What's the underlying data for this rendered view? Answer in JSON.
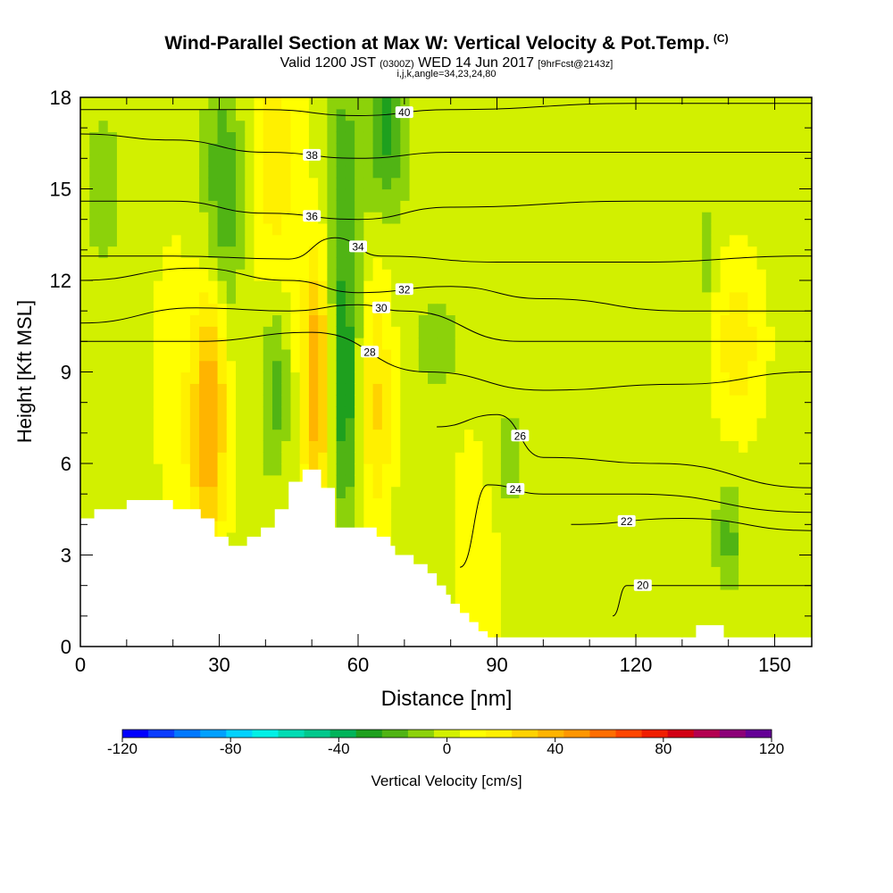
{
  "header": {
    "title": "Wind-Parallel Section at Max W: Vertical Velocity & Pot.Temp.",
    "copyright": "(C)",
    "valid_prefix": "Valid 1200 JST",
    "valid_utc": "(0300Z)",
    "valid_date": "WED 14 Jun 2017",
    "forecast": "[9hrFcst@2143z]",
    "params": "i,j,k,angle=34,23,24,80"
  },
  "chart_data": {
    "type": "heatmap",
    "xlabel": "Distance [nm]",
    "ylabel": "Height [Kft MSL]",
    "xlim": [
      0,
      158
    ],
    "ylim": [
      0,
      18
    ],
    "x_ticks": [
      0,
      30,
      60,
      90,
      120,
      150
    ],
    "y_ticks": [
      0,
      3,
      6,
      9,
      12,
      15,
      18
    ],
    "colorbar": {
      "label": "Vertical Velocity [cm/s]",
      "range": [
        -120,
        120
      ],
      "step": 10,
      "tick_values": [
        -120,
        -80,
        -40,
        0,
        40,
        80,
        120
      ],
      "colors": [
        "#0000ff",
        "#0a3cff",
        "#0078ff",
        "#00a0ff",
        "#00d2ff",
        "#00f0e6",
        "#00dcb4",
        "#00c88c",
        "#00b45a",
        "#1ea01e",
        "#50b414",
        "#8cd20a",
        "#d2f000",
        "#ffff00",
        "#fff000",
        "#ffd200",
        "#ffb400",
        "#ff9600",
        "#ff6e00",
        "#ff4600",
        "#f01e00",
        "#d20014",
        "#b40050",
        "#8c0078",
        "#640096"
      ]
    },
    "terrain_kft": [
      [
        0,
        4.2
      ],
      [
        3,
        4.2
      ],
      [
        3,
        4.5
      ],
      [
        10,
        4.5
      ],
      [
        10,
        4.8
      ],
      [
        20,
        4.8
      ],
      [
        20,
        4.5
      ],
      [
        26,
        4.5
      ],
      [
        26,
        4.2
      ],
      [
        29,
        4.2
      ],
      [
        29,
        3.6
      ],
      [
        32,
        3.6
      ],
      [
        32,
        3.3
      ],
      [
        36,
        3.3
      ],
      [
        36,
        3.6
      ],
      [
        39,
        3.6
      ],
      [
        39,
        3.9
      ],
      [
        42,
        3.9
      ],
      [
        42,
        4.5
      ],
      [
        45,
        4.5
      ],
      [
        45,
        5.4
      ],
      [
        48,
        5.4
      ],
      [
        48,
        5.8
      ],
      [
        52,
        5.8
      ],
      [
        52,
        5.2
      ],
      [
        55,
        5.2
      ],
      [
        55,
        3.9
      ],
      [
        64,
        3.9
      ],
      [
        64,
        3.6
      ],
      [
        67,
        3.6
      ],
      [
        67,
        3.3
      ],
      [
        68,
        3.3
      ],
      [
        68,
        3.0
      ],
      [
        72,
        3.0
      ],
      [
        72,
        2.7
      ],
      [
        75,
        2.7
      ],
      [
        75,
        2.4
      ],
      [
        77,
        2.4
      ],
      [
        77,
        2.0
      ],
      [
        79,
        2.0
      ],
      [
        79,
        1.7
      ],
      [
        80,
        1.7
      ],
      [
        80,
        1.4
      ],
      [
        82,
        1.4
      ],
      [
        82,
        1.1
      ],
      [
        84,
        1.1
      ],
      [
        84,
        0.8
      ],
      [
        86,
        0.8
      ],
      [
        86,
        0.5
      ],
      [
        88,
        0.5
      ],
      [
        88,
        0.3
      ],
      [
        133,
        0.3
      ],
      [
        133,
        0.7
      ],
      [
        139,
        0.7
      ],
      [
        139,
        0.3
      ],
      [
        158,
        0.3
      ]
    ],
    "updrafts": [
      {
        "x": 28,
        "z": 8.5,
        "w": 40,
        "sx": 2.6,
        "sz": 2.5
      },
      {
        "x": 27,
        "z": 5,
        "w": 20,
        "sx": 3,
        "sz": 2
      },
      {
        "x": 51,
        "z": 8.8,
        "w": 45,
        "sx": 2.2,
        "sz": 2.8
      },
      {
        "x": 64,
        "z": 8,
        "w": 25,
        "sx": 2.5,
        "sz": 3
      },
      {
        "x": 42,
        "z": 16,
        "w": 20,
        "sx": 4,
        "sz": 3
      },
      {
        "x": 142,
        "z": 10,
        "w": 20,
        "sx": 4,
        "sz": 2
      },
      {
        "x": 20,
        "z": 9,
        "w": 12,
        "sx": 3,
        "sz": 3
      },
      {
        "x": 86,
        "z": 3,
        "w": 12,
        "sx": 4,
        "sz": 3
      }
    ],
    "downdrafts": [
      {
        "x": 31,
        "z": 15,
        "w": -25,
        "sx": 3,
        "sz": 3
      },
      {
        "x": 42,
        "z": 8.5,
        "w": -20,
        "sx": 2,
        "sz": 2
      },
      {
        "x": 57,
        "z": 13,
        "w": -25,
        "sx": 2.5,
        "sz": 5
      },
      {
        "x": 66,
        "z": 17,
        "w": -30,
        "sx": 3,
        "sz": 2
      },
      {
        "x": 57,
        "z": 7.5,
        "w": -20,
        "sx": 2,
        "sz": 2.5
      },
      {
        "x": 77,
        "z": 10,
        "w": -15,
        "sx": 3,
        "sz": 1
      },
      {
        "x": 92,
        "z": 6,
        "w": -12,
        "sx": 3,
        "sz": 1.5
      },
      {
        "x": 140,
        "z": 3.5,
        "w": -20,
        "sx": 2,
        "sz": 1.2
      },
      {
        "x": 5,
        "z": 15,
        "w": -12,
        "sx": 3,
        "sz": 2
      },
      {
        "x": 135,
        "z": 12.5,
        "w": -12,
        "sx": 1.5,
        "sz": 1.5
      }
    ],
    "contours": [
      {
        "value": 40,
        "label": "40",
        "points": [
          [
            0,
            17.6
          ],
          [
            40,
            17.6
          ],
          [
            60,
            17.4
          ],
          [
            80,
            17.6
          ],
          [
            120,
            17.8
          ],
          [
            158,
            17.8
          ]
        ]
      },
      {
        "value": 38,
        "label": "38",
        "points": [
          [
            0,
            16.8
          ],
          [
            20,
            16.6
          ],
          [
            40,
            16.2
          ],
          [
            60,
            16.0
          ],
          [
            80,
            16.2
          ],
          [
            120,
            16.2
          ],
          [
            158,
            16.2
          ]
        ]
      },
      {
        "value": 36,
        "label": "36",
        "points": [
          [
            0,
            14.6
          ],
          [
            20,
            14.6
          ],
          [
            40,
            14.2
          ],
          [
            60,
            14.0
          ],
          [
            80,
            14.4
          ],
          [
            120,
            14.6
          ],
          [
            158,
            14.6
          ]
        ]
      },
      {
        "value": 34,
        "label": "34",
        "points": [
          [
            0,
            12.8
          ],
          [
            20,
            12.8
          ],
          [
            45,
            12.7
          ],
          [
            55,
            13.4
          ],
          [
            65,
            12.8
          ],
          [
            90,
            12.6
          ],
          [
            120,
            12.6
          ],
          [
            158,
            12.8
          ]
        ]
      },
      {
        "value": 32,
        "label": "32",
        "points": [
          [
            0,
            12.0
          ],
          [
            25,
            12.4
          ],
          [
            45,
            12.0
          ],
          [
            60,
            11.6
          ],
          [
            80,
            11.8
          ],
          [
            100,
            11.4
          ],
          [
            130,
            11.0
          ],
          [
            158,
            11.0
          ]
        ]
      },
      {
        "value": 30,
        "label": "30",
        "points": [
          [
            0,
            10.6
          ],
          [
            25,
            11.1
          ],
          [
            45,
            11.0
          ],
          [
            60,
            11.2
          ],
          [
            70,
            11.0
          ],
          [
            95,
            10.0
          ],
          [
            120,
            10.0
          ],
          [
            158,
            10.0
          ]
        ]
      },
      {
        "value": 28,
        "label": "28",
        "points": [
          [
            0,
            10.0
          ],
          [
            25,
            10.0
          ],
          [
            50,
            10.3
          ],
          [
            75,
            9.0
          ],
          [
            100,
            8.4
          ],
          [
            130,
            8.6
          ],
          [
            158,
            9.0
          ]
        ]
      },
      {
        "value": 26,
        "label": "26",
        "points": [
          [
            77,
            7.2
          ],
          [
            90,
            7.6
          ],
          [
            100,
            6.2
          ],
          [
            125,
            6.0
          ],
          [
            158,
            5.2
          ]
        ]
      },
      {
        "value": 24,
        "label": "24",
        "points": [
          [
            82,
            2.6
          ],
          [
            88,
            5.3
          ],
          [
            100,
            5.0
          ],
          [
            120,
            5.0
          ],
          [
            158,
            4.4
          ]
        ]
      },
      {
        "value": 22,
        "label": "22",
        "points": [
          [
            106,
            4.0
          ],
          [
            130,
            4.2
          ],
          [
            158,
            3.8
          ]
        ]
      },
      {
        "value": 20,
        "label": "20",
        "points": [
          [
            115,
            1.0
          ],
          [
            118,
            2.0
          ],
          [
            125,
            2.0
          ],
          [
            150,
            2.0
          ],
          [
            158,
            2.0
          ]
        ]
      }
    ]
  }
}
